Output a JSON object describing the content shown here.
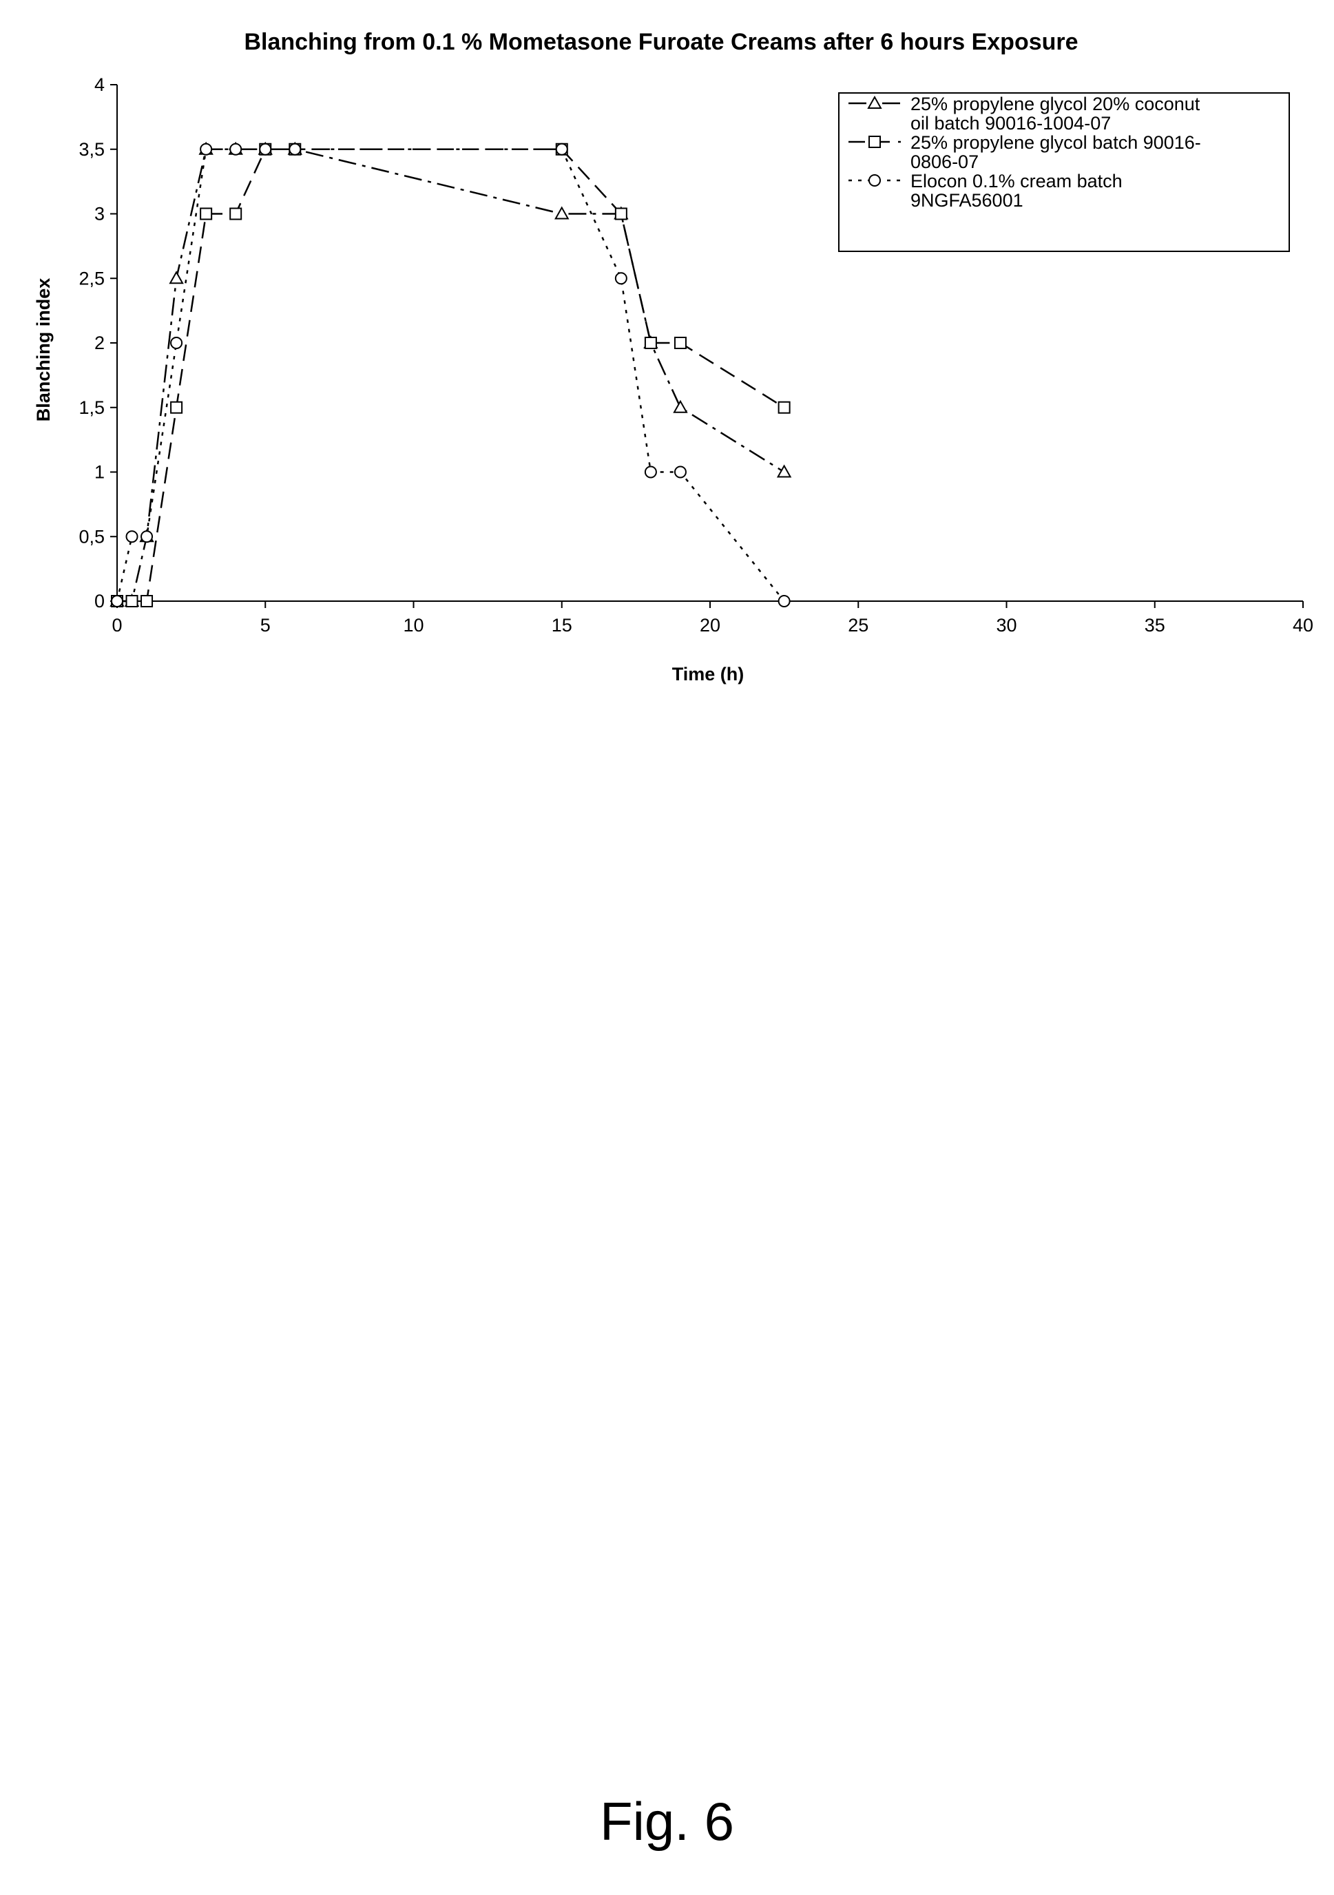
{
  "figure": {
    "caption": "Fig. 6"
  },
  "chart_data": {
    "type": "line",
    "title": "Blanching from 0.1 % Mometasone Furoate Creams after 6 hours Exposure",
    "xlabel": "Time (h)",
    "ylabel": "Blanching index",
    "xlim": [
      0,
      40
    ],
    "ylim": [
      0,
      4
    ],
    "xticks": [
      0,
      5,
      10,
      15,
      20,
      25,
      30,
      35,
      40
    ],
    "xtick_labels": [
      "0",
      "5",
      "10",
      "15",
      "20",
      "25",
      "30",
      "35",
      "40"
    ],
    "yticks": [
      0,
      0.5,
      1,
      1.5,
      2,
      2.5,
      3,
      3.5,
      4
    ],
    "ytick_labels": [
      "0",
      "0,5",
      "1",
      "1,5",
      "2",
      "2,5",
      "3",
      "3,5",
      "4"
    ],
    "grid": false,
    "legend_position": "top-right",
    "series": [
      {
        "name": "25% propylene glycol 20% coconut oil batch 90016-1004-07",
        "legend_lines": [
          "25% propylene glycol 20% coconut",
          "oil batch 90016-1004-07"
        ],
        "marker": "triangle",
        "line_style": "dash-dot",
        "x": [
          0,
          0.5,
          1,
          2,
          3,
          4,
          5,
          6,
          15,
          17,
          18,
          19,
          22.5
        ],
        "y": [
          0,
          0,
          0.5,
          2.5,
          3.5,
          3.5,
          3.5,
          3.5,
          3,
          3,
          2,
          1.5,
          1
        ]
      },
      {
        "name": "25% propylene glycol batch 90016-0806-07",
        "legend_lines": [
          "25% propylene glycol batch 90016-",
          "0806-07"
        ],
        "marker": "square",
        "line_style": "dash",
        "x": [
          0,
          0.5,
          1,
          2,
          3,
          4,
          5,
          6,
          15,
          17,
          18,
          19,
          22.5
        ],
        "y": [
          0,
          0,
          0,
          1.5,
          3,
          3,
          3.5,
          3.5,
          3.5,
          3,
          2,
          2,
          1.5
        ]
      },
      {
        "name": "Elocon 0.1% cream batch 9NGFA56001",
        "legend_lines": [
          "Elocon 0.1% cream batch",
          "9NGFA56001"
        ],
        "marker": "circle",
        "line_style": "dot",
        "x": [
          0,
          0.5,
          1,
          2,
          3,
          4,
          5,
          6,
          15,
          17,
          18,
          19,
          22.5
        ],
        "y": [
          0,
          0.5,
          0.5,
          2,
          3.5,
          3.5,
          3.5,
          3.5,
          3.5,
          2.5,
          1,
          1,
          0
        ]
      }
    ]
  }
}
